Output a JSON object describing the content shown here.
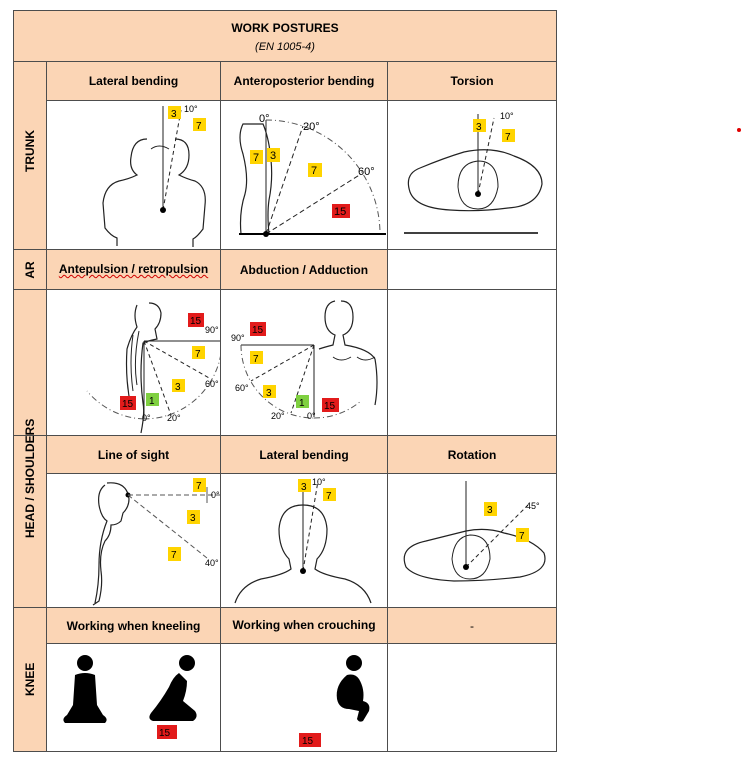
{
  "title": "WORK POSTURES",
  "subtitle": "(EN 1005-4)",
  "sections": {
    "trunk": {
      "label": "TRUNK",
      "cols": [
        "Lateral bending",
        "Anteroposterior bending",
        "Torsion"
      ],
      "lateral": {
        "angle": "10°",
        "b1": "3",
        "b2": "7"
      },
      "antero": {
        "a0": "0°",
        "a20": "20°",
        "a60": "60°",
        "b1": "7",
        "b2": "3",
        "b3": "7",
        "b4": "15"
      },
      "torsion": {
        "angle": "10°",
        "b1": "3",
        "b2": "7"
      }
    },
    "ar": {
      "label": "AR",
      "cols": [
        "Antepulsion / retropulsion",
        "Abduction / Adduction",
        ""
      ],
      "ante": {
        "a90": "90°",
        "a60": "60°",
        "a20": "20°",
        "a0": "0°",
        "b15a": "15",
        "b7": "7",
        "b3": "3",
        "b1": "1",
        "b15b": "15"
      },
      "abd": {
        "a90": "90°",
        "a60": "60°",
        "a20": "20°",
        "a0": "0°",
        "b15a": "15",
        "b7": "7",
        "b3": "3",
        "b1": "1",
        "b15b": "15"
      }
    },
    "head": {
      "label": "HEAD / SHOULDERS",
      "cols": [
        "Line of sight",
        "Lateral bending",
        "Rotation"
      ],
      "sight": {
        "a0": "0°",
        "a40": "40°",
        "b1": "7",
        "b2": "3",
        "b3": "7"
      },
      "lateral": {
        "angle": "10°",
        "b1": "3",
        "b2": "7"
      },
      "rotation": {
        "angle": "45°",
        "b1": "3",
        "b2": "7"
      }
    },
    "knee": {
      "label": "KNEE",
      "cols": [
        "Working when kneeling",
        "Working when crouching",
        "-"
      ],
      "kneel_badge": "15",
      "crouch_badge": "15"
    }
  }
}
